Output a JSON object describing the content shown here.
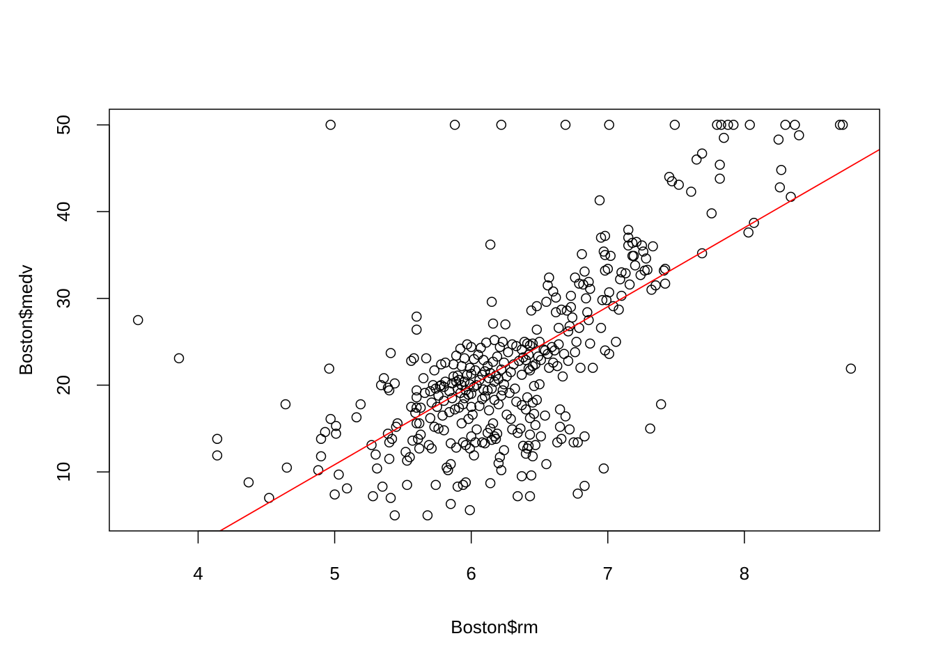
{
  "chart_data": {
    "type": "scatter",
    "title": "",
    "xlabel": "Boston$rm",
    "ylabel": "Boston$medv",
    "xlim": [
      3.35,
      8.99
    ],
    "ylim": [
      3.2,
      51.8
    ],
    "x_ticks": [
      "4",
      "5",
      "6",
      "7",
      "8"
    ],
    "y_ticks": [
      "10",
      "20",
      "30",
      "40",
      "50"
    ],
    "grid": false,
    "legend": "none",
    "colors": {
      "points": "#000000",
      "fit_line": "#ff0000",
      "axes": "#000000"
    },
    "fit_line": {
      "intercept": -34.67,
      "slope": 9.102
    },
    "points": [
      [
        3.56,
        27.5
      ],
      [
        3.86,
        23.1
      ],
      [
        4.14,
        13.8
      ],
      [
        4.14,
        11.9
      ],
      [
        4.37,
        8.8
      ],
      [
        4.52,
        7.0
      ],
      [
        4.64,
        17.8
      ],
      [
        4.65,
        10.5
      ],
      [
        4.88,
        10.2
      ],
      [
        4.9,
        11.8
      ],
      [
        4.9,
        13.8
      ],
      [
        4.93,
        14.6
      ],
      [
        4.96,
        21.9
      ],
      [
        4.97,
        50.0
      ],
      [
        4.97,
        16.1
      ],
      [
        5.0,
        7.4
      ],
      [
        5.01,
        15.3
      ],
      [
        5.01,
        14.4
      ],
      [
        5.03,
        9.7
      ],
      [
        5.09,
        8.1
      ],
      [
        5.16,
        16.3
      ],
      [
        5.19,
        17.8
      ],
      [
        5.27,
        13.1
      ],
      [
        5.28,
        7.2
      ],
      [
        5.3,
        12.0
      ],
      [
        5.31,
        10.4
      ],
      [
        5.34,
        20.0
      ],
      [
        5.35,
        8.3
      ],
      [
        5.36,
        20.8
      ],
      [
        5.39,
        14.4
      ],
      [
        5.39,
        19.7
      ],
      [
        5.4,
        11.5
      ],
      [
        5.4,
        13.4
      ],
      [
        5.4,
        19.4
      ],
      [
        5.41,
        7.0
      ],
      [
        5.41,
        23.7
      ],
      [
        5.42,
        13.8
      ],
      [
        5.44,
        5.0
      ],
      [
        5.44,
        20.2
      ],
      [
        5.45,
        15.2
      ],
      [
        5.46,
        15.6
      ],
      [
        5.52,
        12.3
      ],
      [
        5.53,
        11.3
      ],
      [
        5.53,
        8.5
      ],
      [
        5.55,
        11.7
      ],
      [
        5.56,
        17.5
      ],
      [
        5.56,
        22.8
      ],
      [
        5.57,
        13.6
      ],
      [
        5.58,
        23.1
      ],
      [
        5.59,
        16.8
      ],
      [
        5.6,
        15.6
      ],
      [
        5.6,
        17.4
      ],
      [
        5.6,
        18.6
      ],
      [
        5.6,
        19.4
      ],
      [
        5.6,
        27.9
      ],
      [
        5.6,
        26.4
      ],
      [
        5.61,
        13.8
      ],
      [
        5.62,
        12.7
      ],
      [
        5.62,
        15.6
      ],
      [
        5.63,
        14.3
      ],
      [
        5.63,
        17.4
      ],
      [
        5.65,
        20.8
      ],
      [
        5.66,
        19.1
      ],
      [
        5.67,
        23.1
      ],
      [
        5.68,
        5.0
      ],
      [
        5.69,
        13.1
      ],
      [
        5.7,
        16.2
      ],
      [
        5.7,
        19.3
      ],
      [
        5.71,
        12.7
      ],
      [
        5.71,
        18.0
      ],
      [
        5.72,
        20.0
      ],
      [
        5.73,
        15.2
      ],
      [
        5.73,
        21.7
      ],
      [
        5.74,
        8.5
      ],
      [
        5.74,
        19.6
      ],
      [
        5.75,
        17.5
      ],
      [
        5.76,
        15.0
      ],
      [
        5.76,
        18.8
      ],
      [
        5.77,
        19.9
      ],
      [
        5.78,
        20.0
      ],
      [
        5.78,
        22.4
      ],
      [
        5.79,
        16.5
      ],
      [
        5.8,
        14.8
      ],
      [
        5.8,
        18.2
      ],
      [
        5.8,
        19.8
      ],
      [
        5.81,
        20.4
      ],
      [
        5.81,
        22.6
      ],
      [
        5.82,
        10.5
      ],
      [
        5.83,
        10.2
      ],
      [
        5.84,
        16.9
      ],
      [
        5.84,
        19.3
      ],
      [
        5.85,
        6.3
      ],
      [
        5.85,
        13.3
      ],
      [
        5.85,
        10.9
      ],
      [
        5.86,
        18.5
      ],
      [
        5.86,
        20.2
      ],
      [
        5.87,
        21.0
      ],
      [
        5.87,
        22.4
      ],
      [
        5.88,
        50.0
      ],
      [
        5.88,
        17.2
      ],
      [
        5.89,
        12.8
      ],
      [
        5.89,
        20.4
      ],
      [
        5.89,
        23.4
      ],
      [
        5.9,
        8.3
      ],
      [
        5.9,
        19.6
      ],
      [
        5.9,
        21.1
      ],
      [
        5.91,
        17.4
      ],
      [
        5.91,
        20.6
      ],
      [
        5.92,
        19.1
      ],
      [
        5.92,
        24.2
      ],
      [
        5.93,
        15.6
      ],
      [
        5.93,
        20.0
      ],
      [
        5.93,
        22.2
      ],
      [
        5.94,
        8.5
      ],
      [
        5.94,
        13.4
      ],
      [
        5.94,
        17.8
      ],
      [
        5.95,
        18.5
      ],
      [
        5.95,
        20.4
      ],
      [
        5.95,
        23.1
      ],
      [
        5.96,
        8.8
      ],
      [
        5.96,
        13.1
      ],
      [
        5.96,
        19.4
      ],
      [
        5.97,
        21.2
      ],
      [
        5.97,
        24.7
      ],
      [
        5.98,
        16.1
      ],
      [
        5.98,
        18.9
      ],
      [
        5.99,
        5.6
      ],
      [
        5.99,
        12.7
      ],
      [
        5.99,
        20.1
      ],
      [
        5.99,
        22.0
      ],
      [
        6.0,
        14.1
      ],
      [
        6.0,
        17.5
      ],
      [
        6.0,
        19.0
      ],
      [
        6.0,
        21.3
      ],
      [
        6.0,
        24.4
      ],
      [
        6.01,
        16.6
      ],
      [
        6.02,
        11.9
      ],
      [
        6.02,
        19.8
      ],
      [
        6.02,
        23.0
      ],
      [
        6.03,
        13.4
      ],
      [
        6.03,
        21.7
      ],
      [
        6.04,
        14.9
      ],
      [
        6.04,
        20.0
      ],
      [
        6.05,
        23.5
      ],
      [
        6.06,
        17.6
      ],
      [
        6.06,
        20.6
      ],
      [
        6.07,
        24.3
      ],
      [
        6.08,
        13.4
      ],
      [
        6.08,
        18.4
      ],
      [
        6.08,
        21.2
      ],
      [
        6.09,
        19.5
      ],
      [
        6.09,
        22.9
      ],
      [
        6.1,
        13.3
      ],
      [
        6.1,
        18.7
      ],
      [
        6.1,
        21.6
      ],
      [
        6.11,
        24.9
      ],
      [
        6.12,
        14.5
      ],
      [
        6.12,
        19.4
      ],
      [
        6.12,
        22.2
      ],
      [
        6.13,
        17.1
      ],
      [
        6.13,
        20.8
      ],
      [
        6.14,
        8.7
      ],
      [
        6.14,
        15.0
      ],
      [
        6.14,
        21.4
      ],
      [
        6.14,
        36.2
      ],
      [
        6.15,
        13.7
      ],
      [
        6.15,
        19.6
      ],
      [
        6.15,
        29.6
      ],
      [
        6.16,
        15.6
      ],
      [
        6.16,
        22.7
      ],
      [
        6.16,
        27.1
      ],
      [
        6.17,
        14.1
      ],
      [
        6.17,
        18.3
      ],
      [
        6.17,
        20.4
      ],
      [
        6.17,
        25.2
      ],
      [
        6.18,
        13.8
      ],
      [
        6.18,
        21.1
      ],
      [
        6.19,
        14.4
      ],
      [
        6.19,
        23.3
      ],
      [
        6.2,
        11.0
      ],
      [
        6.2,
        17.8
      ],
      [
        6.2,
        20.7
      ],
      [
        6.21,
        11.7
      ],
      [
        6.21,
        24.4
      ],
      [
        6.22,
        50.0
      ],
      [
        6.22,
        10.2
      ],
      [
        6.22,
        18.8
      ],
      [
        6.22,
        21.8
      ],
      [
        6.23,
        19.4
      ],
      [
        6.23,
        25.0
      ],
      [
        6.24,
        12.5
      ],
      [
        6.24,
        20.1
      ],
      [
        6.24,
        22.6
      ],
      [
        6.25,
        27.0
      ],
      [
        6.26,
        16.6
      ],
      [
        6.26,
        21.0
      ],
      [
        6.27,
        23.8
      ],
      [
        6.28,
        19.1
      ],
      [
        6.29,
        16.1
      ],
      [
        6.29,
        21.5
      ],
      [
        6.3,
        14.9
      ],
      [
        6.3,
        24.7
      ],
      [
        6.31,
        22.4
      ],
      [
        6.32,
        19.6
      ],
      [
        6.33,
        24.5
      ],
      [
        6.33,
        18.1
      ],
      [
        6.34,
        7.2
      ],
      [
        6.34,
        14.5
      ],
      [
        6.35,
        22.8
      ],
      [
        6.36,
        15.0
      ],
      [
        6.37,
        9.5
      ],
      [
        6.37,
        17.7
      ],
      [
        6.37,
        21.2
      ],
      [
        6.37,
        24.1
      ],
      [
        6.38,
        13.0
      ],
      [
        6.38,
        23.2
      ],
      [
        6.39,
        25.0
      ],
      [
        6.4,
        12.1
      ],
      [
        6.4,
        17.2
      ],
      [
        6.4,
        22.9
      ],
      [
        6.41,
        12.7
      ],
      [
        6.41,
        18.6
      ],
      [
        6.41,
        24.8
      ],
      [
        6.42,
        13.0
      ],
      [
        6.42,
        21.9
      ],
      [
        6.42,
        23.5
      ],
      [
        6.43,
        7.2
      ],
      [
        6.43,
        14.3
      ],
      [
        6.43,
        16.2
      ],
      [
        6.43,
        21.7
      ],
      [
        6.43,
        24.6
      ],
      [
        6.44,
        9.6
      ],
      [
        6.44,
        28.6
      ],
      [
        6.45,
        11.8
      ],
      [
        6.45,
        18.0
      ],
      [
        6.45,
        22.2
      ],
      [
        6.45,
        24.8
      ],
      [
        6.46,
        19.9
      ],
      [
        6.46,
        16.7
      ],
      [
        6.47,
        13.1
      ],
      [
        6.47,
        15.4
      ],
      [
        6.47,
        22.4
      ],
      [
        6.48,
        18.3
      ],
      [
        6.48,
        26.4
      ],
      [
        6.48,
        29.1
      ],
      [
        6.49,
        23.3
      ],
      [
        6.5,
        20.1
      ],
      [
        6.5,
        25.0
      ],
      [
        6.51,
        14.1
      ],
      [
        6.51,
        22.9
      ],
      [
        6.53,
        24.1
      ],
      [
        6.54,
        16.5
      ],
      [
        6.54,
        24.0
      ],
      [
        6.55,
        10.9
      ],
      [
        6.55,
        29.6
      ],
      [
        6.56,
        31.5
      ],
      [
        6.56,
        23.6
      ],
      [
        6.57,
        32.4
      ],
      [
        6.57,
        22.0
      ],
      [
        6.59,
        24.4
      ],
      [
        6.6,
        30.8
      ],
      [
        6.6,
        22.6
      ],
      [
        6.61,
        24.0
      ],
      [
        6.62,
        28.4
      ],
      [
        6.62,
        30.1
      ],
      [
        6.63,
        22.2
      ],
      [
        6.63,
        13.4
      ],
      [
        6.64,
        26.6
      ],
      [
        6.64,
        24.7
      ],
      [
        6.65,
        17.2
      ],
      [
        6.65,
        15.2
      ],
      [
        6.66,
        28.7
      ],
      [
        6.66,
        13.8
      ],
      [
        6.67,
        21.0
      ],
      [
        6.68,
        23.6
      ],
      [
        6.69,
        50.0
      ],
      [
        6.69,
        16.4
      ],
      [
        6.7,
        28.6
      ],
      [
        6.71,
        26.2
      ],
      [
        6.71,
        22.8
      ],
      [
        6.72,
        14.9
      ],
      [
        6.72,
        26.8
      ],
      [
        6.73,
        29.0
      ],
      [
        6.73,
        30.3
      ],
      [
        6.74,
        27.8
      ],
      [
        6.75,
        13.4
      ],
      [
        6.76,
        23.8
      ],
      [
        6.76,
        32.4
      ],
      [
        6.77,
        25.0
      ],
      [
        6.78,
        7.5
      ],
      [
        6.78,
        13.4
      ],
      [
        6.79,
        26.6
      ],
      [
        6.79,
        31.7
      ],
      [
        6.8,
        22.0
      ],
      [
        6.81,
        35.1
      ],
      [
        6.82,
        31.6
      ],
      [
        6.83,
        8.4
      ],
      [
        6.83,
        33.1
      ],
      [
        6.83,
        14.1
      ],
      [
        6.84,
        30.0
      ],
      [
        6.85,
        28.4
      ],
      [
        6.86,
        27.5
      ],
      [
        6.86,
        31.9
      ],
      [
        6.87,
        24.8
      ],
      [
        6.87,
        31.1
      ],
      [
        6.89,
        22.0
      ],
      [
        6.94,
        41.3
      ],
      [
        6.95,
        26.6
      ],
      [
        6.95,
        37.0
      ],
      [
        6.96,
        29.8
      ],
      [
        6.97,
        35.4
      ],
      [
        6.97,
        10.4
      ],
      [
        6.98,
        37.2
      ],
      [
        6.98,
        24.0
      ],
      [
        6.98,
        35.0
      ],
      [
        6.98,
        33.2
      ],
      [
        6.99,
        29.8
      ],
      [
        7.0,
        33.4
      ],
      [
        7.01,
        50.0
      ],
      [
        7.01,
        23.6
      ],
      [
        7.01,
        30.7
      ],
      [
        7.02,
        34.9
      ],
      [
        7.04,
        29.1
      ],
      [
        7.06,
        25.0
      ],
      [
        7.08,
        28.7
      ],
      [
        7.09,
        32.2
      ],
      [
        7.1,
        33.0
      ],
      [
        7.1,
        30.3
      ],
      [
        7.13,
        32.9
      ],
      [
        7.15,
        36.1
      ],
      [
        7.15,
        37.0
      ],
      [
        7.15,
        37.9
      ],
      [
        7.16,
        31.6
      ],
      [
        7.18,
        34.9
      ],
      [
        7.18,
        36.4
      ],
      [
        7.19,
        34.9
      ],
      [
        7.2,
        33.8
      ],
      [
        7.21,
        36.5
      ],
      [
        7.24,
        32.7
      ],
      [
        7.25,
        36.1
      ],
      [
        7.26,
        35.4
      ],
      [
        7.27,
        33.2
      ],
      [
        7.28,
        34.6
      ],
      [
        7.29,
        33.3
      ],
      [
        7.31,
        15.0
      ],
      [
        7.32,
        31.0
      ],
      [
        7.33,
        36.0
      ],
      [
        7.35,
        31.5
      ],
      [
        7.39,
        17.8
      ],
      [
        7.41,
        33.2
      ],
      [
        7.42,
        31.7
      ],
      [
        7.42,
        33.4
      ],
      [
        7.45,
        44.0
      ],
      [
        7.47,
        43.5
      ],
      [
        7.49,
        50.0
      ],
      [
        7.52,
        43.1
      ],
      [
        7.61,
        42.3
      ],
      [
        7.65,
        46.0
      ],
      [
        7.69,
        35.2
      ],
      [
        7.69,
        46.7
      ],
      [
        7.76,
        39.8
      ],
      [
        7.8,
        50.0
      ],
      [
        7.82,
        45.4
      ],
      [
        7.82,
        43.8
      ],
      [
        7.83,
        50.0
      ],
      [
        7.85,
        48.5
      ],
      [
        7.88,
        50.0
      ],
      [
        7.92,
        50.0
      ],
      [
        8.03,
        37.6
      ],
      [
        8.04,
        50.0
      ],
      [
        8.07,
        38.7
      ],
      [
        8.25,
        48.3
      ],
      [
        8.26,
        42.8
      ],
      [
        8.27,
        44.8
      ],
      [
        8.3,
        50.0
      ],
      [
        8.34,
        41.7
      ],
      [
        8.37,
        50.0
      ],
      [
        8.4,
        48.8
      ],
      [
        8.7,
        50.0
      ],
      [
        8.72,
        50.0
      ],
      [
        8.78,
        21.9
      ]
    ]
  }
}
